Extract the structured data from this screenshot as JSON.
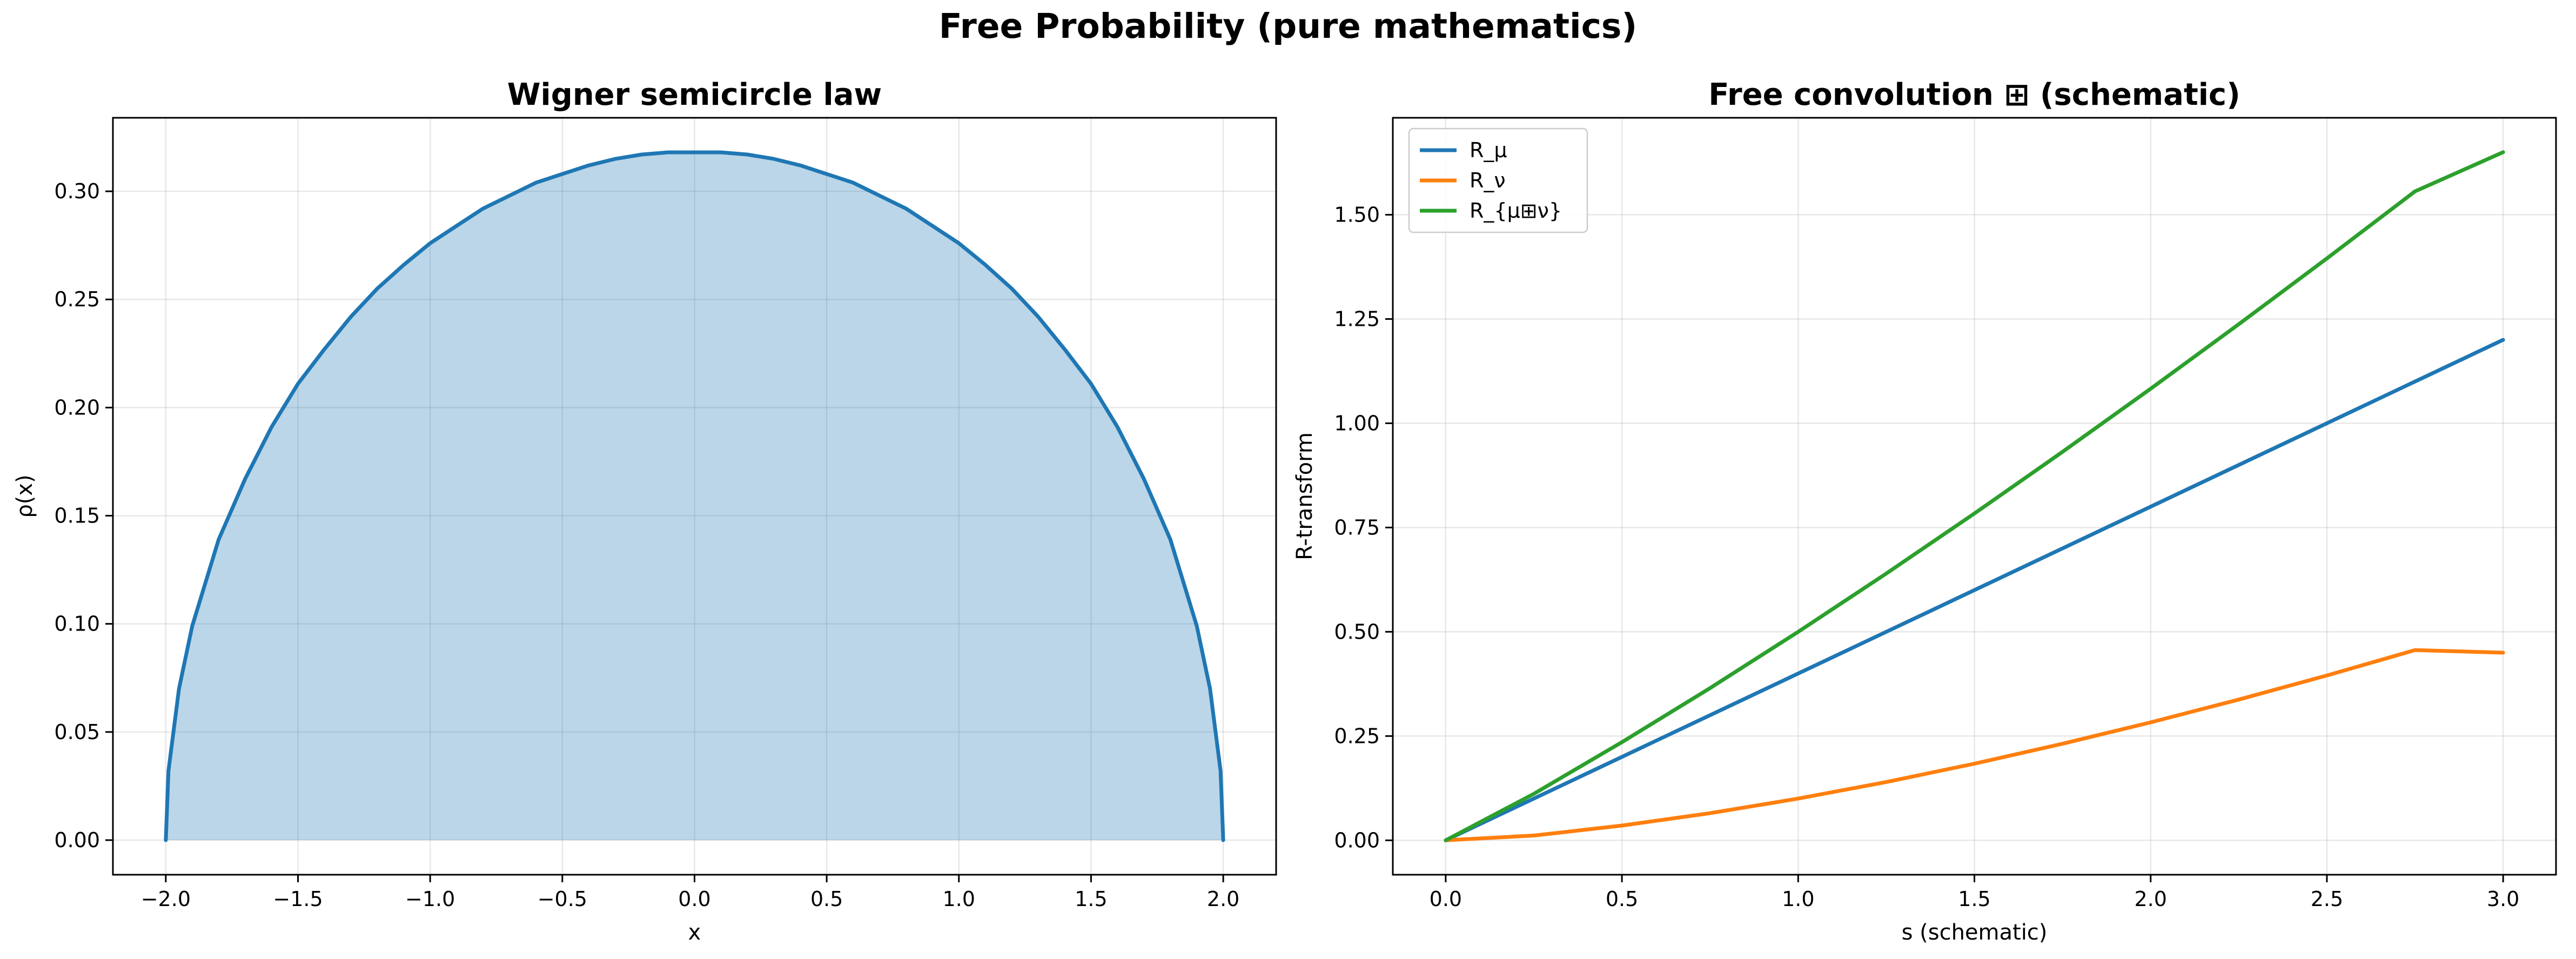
{
  "figure": {
    "suptitle": "Free Probability (pure mathematics)"
  },
  "chart_data": [
    {
      "type": "area",
      "title": "Wigner semicircle law",
      "xlabel": "x",
      "ylabel": "ρ(x)",
      "xlim": [
        -2.2,
        2.2
      ],
      "ylim": [
        -0.016,
        0.334
      ],
      "xticks": [
        -2.0,
        -1.5,
        -1.0,
        -0.5,
        0.0,
        0.5,
        1.0,
        1.5,
        2.0
      ],
      "xtick_labels": [
        "−2.0",
        "−1.5",
        "−1.0",
        "−0.5",
        "0.0",
        "0.5",
        "1.0",
        "1.5",
        "2.0"
      ],
      "yticks": [
        0.0,
        0.05,
        0.1,
        0.15,
        0.2,
        0.25,
        0.3
      ],
      "ytick_labels": [
        "0.00",
        "0.05",
        "0.10",
        "0.15",
        "0.20",
        "0.25",
        "0.30"
      ],
      "grid": true,
      "series": [
        {
          "color": "#1f77b4",
          "fill_color": "#1f77b4",
          "fill_opacity": 0.3,
          "x": [
            -2.0,
            -1.99,
            -1.95,
            -1.9,
            -1.8,
            -1.7,
            -1.6,
            -1.5,
            -1.4,
            -1.3,
            -1.2,
            -1.1,
            -1.0,
            -0.9,
            -0.8,
            -0.7,
            -0.6,
            -0.5,
            -0.4,
            -0.3,
            -0.2,
            -0.1,
            0.0,
            0.1,
            0.2,
            0.3,
            0.4,
            0.5,
            0.6,
            0.7,
            0.8,
            0.9,
            1.0,
            1.1,
            1.2,
            1.3,
            1.4,
            1.5,
            1.6,
            1.7,
            1.8,
            1.9,
            1.95,
            1.99,
            2.0
          ],
          "y": [
            0.0,
            0.032,
            0.07,
            0.099,
            0.139,
            0.167,
            0.191,
            0.211,
            0.227,
            0.242,
            0.255,
            0.266,
            0.276,
            0.284,
            0.292,
            0.298,
            0.304,
            0.308,
            0.312,
            0.315,
            0.317,
            0.318,
            0.318,
            0.318,
            0.317,
            0.315,
            0.312,
            0.308,
            0.304,
            0.298,
            0.292,
            0.284,
            0.276,
            0.266,
            0.255,
            0.242,
            0.227,
            0.211,
            0.191,
            0.167,
            0.139,
            0.099,
            0.07,
            0.032,
            0.0
          ]
        }
      ]
    },
    {
      "type": "line",
      "title": "Free convolution ⊞ (schematic)",
      "xlabel": "s (schematic)",
      "ylabel": "R-transform",
      "xlim": [
        -0.15,
        3.15
      ],
      "ylim": [
        -0.0825,
        1.7325
      ],
      "xticks": [
        0.0,
        0.5,
        1.0,
        1.5,
        2.0,
        2.5,
        3.0
      ],
      "xtick_labels": [
        "0.0",
        "0.5",
        "1.0",
        "1.5",
        "2.0",
        "2.5",
        "3.0"
      ],
      "yticks": [
        0.0,
        0.25,
        0.5,
        0.75,
        1.0,
        1.25,
        1.5
      ],
      "ytick_labels": [
        "0.00",
        "0.25",
        "0.50",
        "0.75",
        "1.00",
        "1.25",
        "1.50"
      ],
      "grid": true,
      "legend_position": "top-left",
      "series": [
        {
          "name": "R_μ",
          "color": "#1f77b4",
          "x": [
            0.0,
            0.5,
            1.0,
            1.5,
            2.0,
            2.5,
            3.0
          ],
          "y": [
            0.0,
            0.2,
            0.4,
            0.6,
            0.8,
            1.0,
            1.2
          ]
        },
        {
          "name": "R_ν",
          "color": "#ff7f0e",
          "x": [
            0.0,
            0.25,
            0.5,
            0.75,
            1.0,
            1.25,
            1.5,
            1.75,
            2.0,
            2.25,
            2.5,
            2.75,
            3.0
          ],
          "y": [
            0.0,
            0.0114,
            0.0354,
            0.065,
            0.1,
            0.1398,
            0.1837,
            0.2315,
            0.2828,
            0.3375,
            0.3953,
            0.4561,
            0.45
          ]
        },
        {
          "name": "R_{μ⊞ν}",
          "color": "#2ca02c",
          "x": [
            0.0,
            0.25,
            0.5,
            0.75,
            1.0,
            1.25,
            1.5,
            1.75,
            2.0,
            2.25,
            2.5,
            2.75,
            3.0
          ],
          "y": [
            0.0,
            0.1114,
            0.2354,
            0.365,
            0.5,
            0.6398,
            0.7837,
            0.9315,
            1.0828,
            1.2375,
            1.3953,
            1.5561,
            1.65
          ]
        }
      ]
    }
  ]
}
